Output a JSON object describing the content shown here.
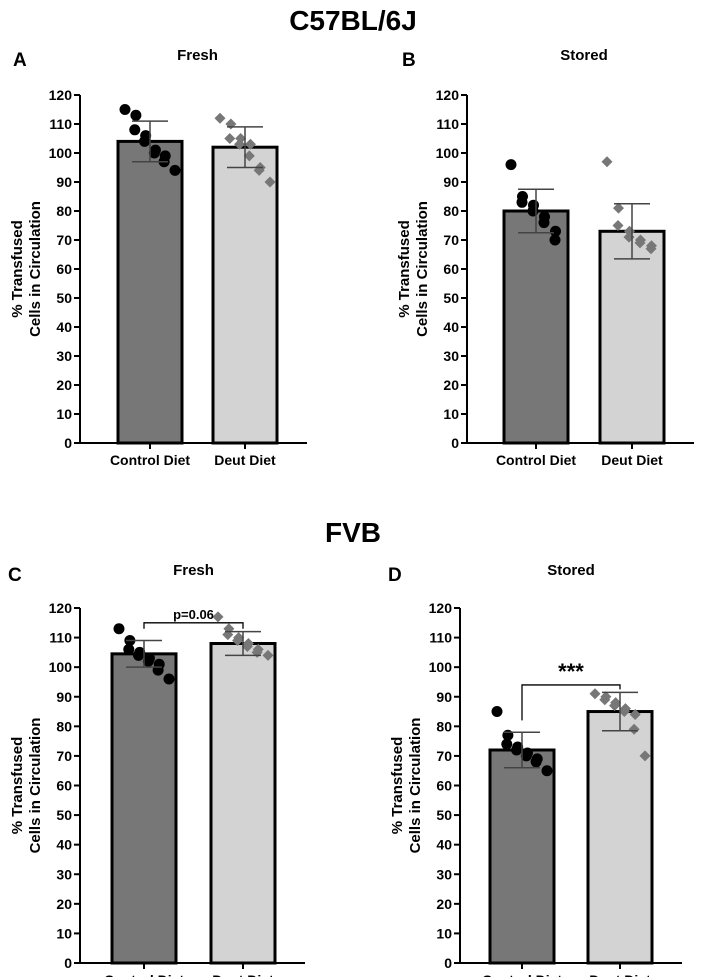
{
  "headings": {
    "top": "C57BL/6J",
    "bottom": "FVB"
  },
  "colors": {
    "control_bar": "#777777",
    "deut_bar": "#d3d3d3",
    "bar_outline": "#000000",
    "control_points": "#000000",
    "deut_points": "#777777",
    "errorbar": "#444444"
  },
  "chart_data": [
    {
      "panel": "A",
      "type": "bar",
      "title": "Fresh",
      "ylabel_lines": [
        "% Transfused",
        "Cells in Circulation"
      ],
      "ylim": [
        0,
        120
      ],
      "yticks": [
        0,
        10,
        20,
        30,
        40,
        50,
        60,
        70,
        80,
        90,
        100,
        110,
        120
      ],
      "categories": [
        "Control Diet",
        "Deut Diet"
      ],
      "means": [
        104,
        102
      ],
      "sd": [
        7,
        7
      ],
      "points": [
        [
          115,
          113,
          108,
          106,
          104,
          101,
          100,
          99,
          97,
          94
        ],
        [
          112,
          110,
          105,
          105,
          103,
          103,
          99,
          95,
          94,
          90
        ]
      ],
      "significance": null
    },
    {
      "panel": "B",
      "type": "bar",
      "title": "Stored",
      "ylabel_lines": [
        "% Transfused",
        "Cells in Circulation"
      ],
      "ylim": [
        0,
        120
      ],
      "yticks": [
        0,
        10,
        20,
        30,
        40,
        50,
        60,
        70,
        80,
        90,
        100,
        110,
        120
      ],
      "categories": [
        "Control Diet",
        "Deut Diet"
      ],
      "means": [
        80,
        73
      ],
      "sd": [
        7.5,
        9.5
      ],
      "points": [
        [
          96,
          85,
          83,
          82,
          80,
          78,
          76,
          73,
          70
        ],
        [
          97,
          81,
          75,
          73,
          71,
          70,
          69,
          68,
          67
        ]
      ],
      "significance": null
    },
    {
      "panel": "C",
      "type": "bar",
      "title": "Fresh",
      "ylabel_lines": [
        "% Transfused",
        "Cells in Circulation"
      ],
      "ylim": [
        0,
        120
      ],
      "yticks": [
        0,
        10,
        20,
        30,
        40,
        50,
        60,
        70,
        80,
        90,
        100,
        110,
        120
      ],
      "categories": [
        "Control Diet",
        "Deut Diet"
      ],
      "means": [
        104.5,
        108
      ],
      "sd": [
        4.5,
        4
      ],
      "points": [
        [
          113,
          109,
          106,
          105,
          104,
          103,
          102,
          101,
          99,
          96
        ],
        [
          117,
          113,
          111,
          110,
          109,
          108,
          107,
          106,
          105,
          104
        ]
      ],
      "significance": {
        "label": "p=0.06",
        "style": "text",
        "bracket_y": 115
      }
    },
    {
      "panel": "D",
      "type": "bar",
      "title": "Stored",
      "ylabel_lines": [
        "% Transfused",
        "Cells in Circulation"
      ],
      "ylim": [
        0,
        120
      ],
      "yticks": [
        0,
        10,
        20,
        30,
        40,
        50,
        60,
        70,
        80,
        90,
        100,
        110,
        120
      ],
      "categories": [
        "Control Diet",
        "Deut Diet"
      ],
      "means": [
        72,
        85
      ],
      "sd": [
        6,
        6.5
      ],
      "points": [
        [
          85,
          77,
          74,
          73,
          72,
          71,
          70,
          69,
          68,
          65
        ],
        [
          91,
          90,
          89,
          88,
          87,
          86,
          85,
          84,
          79,
          70
        ]
      ],
      "significance": {
        "label": "***",
        "style": "stars",
        "bracket_y": 94
      }
    }
  ]
}
